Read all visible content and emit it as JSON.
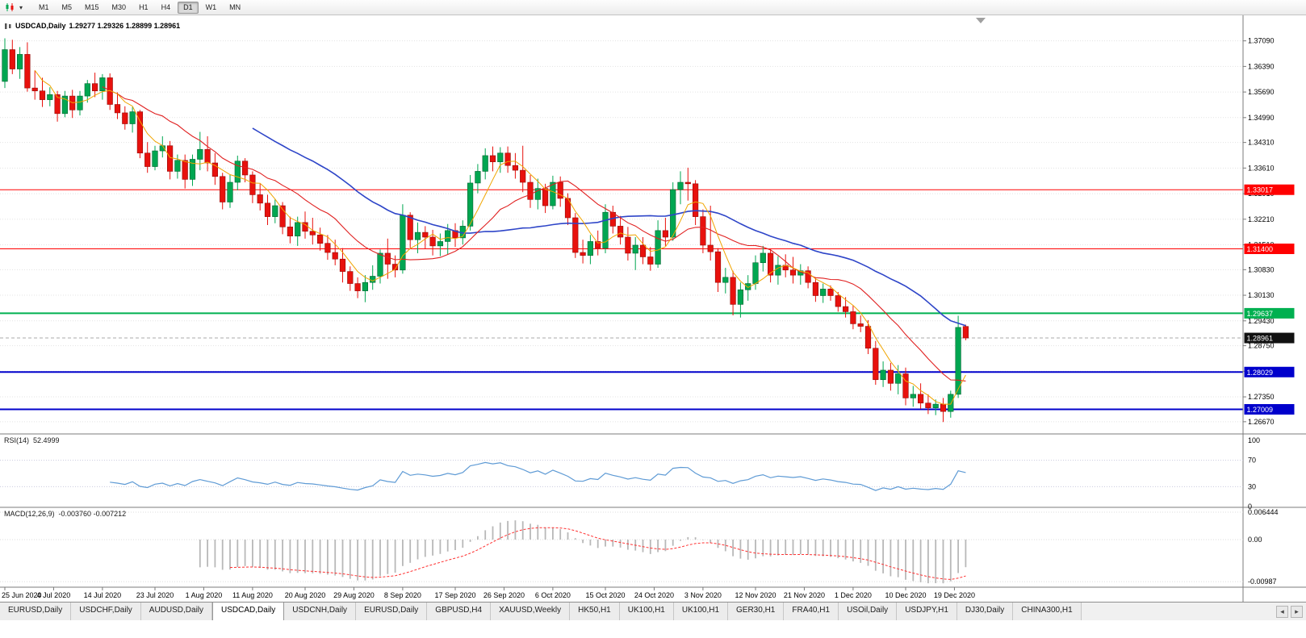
{
  "toolbar": {
    "timeframes": [
      "M1",
      "M5",
      "M15",
      "M30",
      "H1",
      "H4",
      "D1",
      "W1",
      "MN"
    ],
    "active_timeframe": "D1"
  },
  "icons": {
    "dropdown_caret": "▾",
    "tab_scroll_left": "◂",
    "tab_scroll_right": "▸"
  },
  "chart_header": {
    "symbol": "USDCAD,Daily",
    "ohlc": "1.29277 1.29326 1.28899 1.28961"
  },
  "indicators": {
    "rsi": {
      "name": "RSI(14)",
      "value": "52.4999",
      "period": 14,
      "line_color": "#5f9bd5",
      "levels": [
        {
          "label": "100",
          "value": 100
        },
        {
          "label": "70",
          "value": 70
        },
        {
          "label": "30",
          "value": 30
        },
        {
          "label": "0",
          "value": 0
        }
      ]
    },
    "macd": {
      "name": "MACD(12,26,9)",
      "values": "-0.003760 -0.007212",
      "fast": 12,
      "slow": 26,
      "signal": 9,
      "hist_color": "#b8b8b8",
      "signal_color": "#ff3030",
      "scale": [
        {
          "label": "0.006444",
          "value": 0.006444
        },
        {
          "label": "0.00",
          "value": 0
        },
        {
          "label": "-0.00987",
          "value": -0.00987
        }
      ]
    }
  },
  "price_scale": [
    {
      "label": "1.37090",
      "value": 1.3709
    },
    {
      "label": "1.36390",
      "value": 1.3639
    },
    {
      "label": "1.35690",
      "value": 1.3569
    },
    {
      "label": "1.34990",
      "value": 1.3499
    },
    {
      "label": "1.34310",
      "value": 1.3431
    },
    {
      "label": "1.33610",
      "value": 1.3361
    },
    {
      "label": "1.32910",
      "value": 1.3291
    },
    {
      "label": "1.32210",
      "value": 1.3221
    },
    {
      "label": "1.31510",
      "value": 1.3151
    },
    {
      "label": "1.30830",
      "value": 1.3083
    },
    {
      "label": "1.30130",
      "value": 1.3013
    },
    {
      "label": "1.29430",
      "value": 1.2943
    },
    {
      "label": "1.28750",
      "value": 1.2875
    },
    {
      "label": "1.28050",
      "value": 1.2805
    },
    {
      "label": "1.27350",
      "value": 1.2735
    },
    {
      "label": "1.26670",
      "value": 1.2667
    }
  ],
  "hlines": [
    {
      "label": "1.33017",
      "value": 1.33017,
      "color": "#ff0000",
      "width": 1
    },
    {
      "label": "1.31400",
      "value": 1.314,
      "color": "#ff0000",
      "width": 1
    },
    {
      "label": "1.29637",
      "value": 1.29637,
      "color": "#00b050",
      "width": 2
    },
    {
      "label": "1.28029",
      "value": 1.28029,
      "color": "#0000cc",
      "width": 2
    },
    {
      "label": "1.27009",
      "value": 1.27009,
      "color": "#0000cc",
      "width": 2
    }
  ],
  "current_price": {
    "label": "1.28961",
    "value": 1.28961,
    "line_color": "#a8a8a8",
    "tag_bg": "#111111"
  },
  "chart_data": {
    "type": "candlestick",
    "symbol": "USDCAD",
    "timeframe": "Daily",
    "ylim": [
      1.2638,
      1.377
    ],
    "bull_color": "#00a651",
    "bull_border": "#00642f",
    "bear_color": "#e8110d",
    "bear_border": "#940a07",
    "moving_averages": [
      {
        "period": 34,
        "color": "#2e45c8",
        "width": 1.6
      },
      {
        "period": 14,
        "color": "#e02020",
        "width": 1.1
      },
      {
        "period": 5,
        "color": "#f0a500",
        "width": 1.0
      }
    ],
    "x_labels": [
      {
        "text": "25 Jun 2020",
        "index": 0
      },
      {
        "text": "4 Jul 2020",
        "index": 6.5
      },
      {
        "text": "14 Jul 2020",
        "index": 13
      },
      {
        "text": "23 Jul 2020",
        "index": 20
      },
      {
        "text": "1 Aug 2020",
        "index": 26.5
      },
      {
        "text": "11 Aug 2020",
        "index": 33
      },
      {
        "text": "20 Aug 2020",
        "index": 40
      },
      {
        "text": "29 Aug 2020",
        "index": 46.5
      },
      {
        "text": "8 Sep 2020",
        "index": 53
      },
      {
        "text": "17 Sep 2020",
        "index": 60
      },
      {
        "text": "26 Sep 2020",
        "index": 66.5
      },
      {
        "text": "6 Oct 2020",
        "index": 73
      },
      {
        "text": "15 Oct 2020",
        "index": 80
      },
      {
        "text": "24 Oct 2020",
        "index": 86.5
      },
      {
        "text": "3 Nov 2020",
        "index": 93
      },
      {
        "text": "12 Nov 2020",
        "index": 100
      },
      {
        "text": "21 Nov 2020",
        "index": 106.5
      },
      {
        "text": "1 Dec 2020",
        "index": 113
      },
      {
        "text": "10 Dec 2020",
        "index": 120
      },
      {
        "text": "19 Dec 2020",
        "index": 126.5
      }
    ],
    "ohlc": [
      [
        1.3598,
        1.3716,
        1.358,
        1.3685
      ],
      [
        1.3685,
        1.3712,
        1.3618,
        1.3632
      ],
      [
        1.3632,
        1.3692,
        1.3605,
        1.3672
      ],
      [
        1.3672,
        1.3705,
        1.357,
        1.358
      ],
      [
        1.358,
        1.3628,
        1.3548,
        1.3572
      ],
      [
        1.3572,
        1.3608,
        1.3528,
        1.3548
      ],
      [
        1.3548,
        1.3582,
        1.353,
        1.3562
      ],
      [
        1.3562,
        1.3572,
        1.3488,
        1.351
      ],
      [
        1.351,
        1.3572,
        1.35,
        1.3558
      ],
      [
        1.3558,
        1.3575,
        1.3498,
        1.352
      ],
      [
        1.352,
        1.3572,
        1.3505,
        1.3558
      ],
      [
        1.3558,
        1.3602,
        1.354,
        1.3592
      ],
      [
        1.3592,
        1.3622,
        1.3555,
        1.3572
      ],
      [
        1.3572,
        1.3618,
        1.3548,
        1.3608
      ],
      [
        1.3608,
        1.362,
        1.352,
        1.3535
      ],
      [
        1.3535,
        1.3568,
        1.3495,
        1.3512
      ],
      [
        1.3512,
        1.353,
        1.3466,
        1.3482
      ],
      [
        1.3482,
        1.3528,
        1.3458,
        1.3515
      ],
      [
        1.3515,
        1.352,
        1.3388,
        1.3402
      ],
      [
        1.3402,
        1.3432,
        1.3348,
        1.3365
      ],
      [
        1.3365,
        1.3422,
        1.3355,
        1.3408
      ],
      [
        1.3408,
        1.3448,
        1.339,
        1.3422
      ],
      [
        1.3422,
        1.3435,
        1.333,
        1.3352
      ],
      [
        1.3352,
        1.3398,
        1.3332,
        1.3382
      ],
      [
        1.3382,
        1.3398,
        1.3305,
        1.333
      ],
      [
        1.333,
        1.3398,
        1.3312,
        1.3385
      ],
      [
        1.3385,
        1.346,
        1.3355,
        1.3412
      ],
      [
        1.3412,
        1.3448,
        1.3352,
        1.3375
      ],
      [
        1.3375,
        1.3402,
        1.3315,
        1.3338
      ],
      [
        1.3338,
        1.3348,
        1.3248,
        1.3268
      ],
      [
        1.3268,
        1.3342,
        1.3252,
        1.3322
      ],
      [
        1.3322,
        1.3395,
        1.33,
        1.338
      ],
      [
        1.338,
        1.3388,
        1.3322,
        1.3342
      ],
      [
        1.3342,
        1.3352,
        1.3265,
        1.3288
      ],
      [
        1.3288,
        1.3318,
        1.3245,
        1.3265
      ],
      [
        1.3265,
        1.3288,
        1.3205,
        1.3228
      ],
      [
        1.3228,
        1.3275,
        1.321,
        1.3258
      ],
      [
        1.3258,
        1.3268,
        1.318,
        1.32
      ],
      [
        1.32,
        1.3228,
        1.3155,
        1.3175
      ],
      [
        1.3175,
        1.3228,
        1.3148,
        1.3212
      ],
      [
        1.3212,
        1.3242,
        1.3168,
        1.3188
      ],
      [
        1.3188,
        1.3225,
        1.3152,
        1.3178
      ],
      [
        1.3178,
        1.3198,
        1.3135,
        1.3155
      ],
      [
        1.3155,
        1.3178,
        1.311,
        1.313
      ],
      [
        1.313,
        1.3165,
        1.3095,
        1.3112
      ],
      [
        1.3112,
        1.3142,
        1.3048,
        1.3078
      ],
      [
        1.3078,
        1.3092,
        1.3025,
        1.3045
      ],
      [
        1.3045,
        1.3062,
        1.3005,
        1.3025
      ],
      [
        1.3025,
        1.3068,
        1.2994,
        1.3048
      ],
      [
        1.3048,
        1.3095,
        1.3028,
        1.3065
      ],
      [
        1.3065,
        1.3138,
        1.3045,
        1.3128
      ],
      [
        1.3128,
        1.3168,
        1.3058,
        1.3098
      ],
      [
        1.3098,
        1.3122,
        1.3062,
        1.3082
      ],
      [
        1.3082,
        1.3262,
        1.3072,
        1.3232
      ],
      [
        1.3232,
        1.324,
        1.3142,
        1.3165
      ],
      [
        1.3165,
        1.3212,
        1.3128,
        1.3185
      ],
      [
        1.3185,
        1.3202,
        1.314,
        1.3172
      ],
      [
        1.3172,
        1.3192,
        1.3122,
        1.3148
      ],
      [
        1.3148,
        1.3182,
        1.312,
        1.316
      ],
      [
        1.316,
        1.3208,
        1.3125,
        1.319
      ],
      [
        1.319,
        1.321,
        1.3145,
        1.317
      ],
      [
        1.317,
        1.3218,
        1.3152,
        1.3202
      ],
      [
        1.3202,
        1.3342,
        1.319,
        1.332
      ],
      [
        1.332,
        1.3372,
        1.3292,
        1.3352
      ],
      [
        1.3352,
        1.3415,
        1.333,
        1.3395
      ],
      [
        1.3395,
        1.342,
        1.3352,
        1.3378
      ],
      [
        1.3378,
        1.3418,
        1.3348,
        1.3402
      ],
      [
        1.3402,
        1.342,
        1.3348,
        1.3368
      ],
      [
        1.3368,
        1.3402,
        1.3332,
        1.3355
      ],
      [
        1.3355,
        1.3422,
        1.3295,
        1.3322
      ],
      [
        1.3322,
        1.3342,
        1.3252,
        1.3275
      ],
      [
        1.3275,
        1.3332,
        1.3248,
        1.3305
      ],
      [
        1.3305,
        1.3318,
        1.3238,
        1.3258
      ],
      [
        1.3258,
        1.334,
        1.3248,
        1.3322
      ],
      [
        1.3322,
        1.3338,
        1.3255,
        1.3278
      ],
      [
        1.3278,
        1.3292,
        1.3205,
        1.3225
      ],
      [
        1.3225,
        1.3238,
        1.3115,
        1.313
      ],
      [
        1.313,
        1.3165,
        1.31,
        1.3122
      ],
      [
        1.3122,
        1.3178,
        1.3098,
        1.316
      ],
      [
        1.316,
        1.319,
        1.3122,
        1.3142
      ],
      [
        1.3142,
        1.3262,
        1.3128,
        1.324
      ],
      [
        1.324,
        1.3258,
        1.3182,
        1.3202
      ],
      [
        1.3202,
        1.323,
        1.3152,
        1.3172
      ],
      [
        1.3172,
        1.32,
        1.3108,
        1.3128
      ],
      [
        1.3128,
        1.3172,
        1.3082,
        1.315
      ],
      [
        1.315,
        1.3172,
        1.3098,
        1.3118
      ],
      [
        1.3118,
        1.3145,
        1.308,
        1.3098
      ],
      [
        1.3098,
        1.3218,
        1.3088,
        1.319
      ],
      [
        1.319,
        1.3225,
        1.3148,
        1.3172
      ],
      [
        1.3172,
        1.3322,
        1.3162,
        1.3302
      ],
      [
        1.3302,
        1.3352,
        1.3262,
        1.3322
      ],
      [
        1.3322,
        1.3362,
        1.3272,
        1.3318
      ],
      [
        1.3318,
        1.3328,
        1.3205,
        1.3228
      ],
      [
        1.3228,
        1.3248,
        1.3128,
        1.315
      ],
      [
        1.315,
        1.3258,
        1.3108,
        1.3132
      ],
      [
        1.3132,
        1.3142,
        1.3022,
        1.3048
      ],
      [
        1.3048,
        1.3088,
        1.3018,
        1.3062
      ],
      [
        1.3062,
        1.308,
        1.2958,
        1.2988
      ],
      [
        1.2988,
        1.3048,
        1.2952,
        1.3028
      ],
      [
        1.3028,
        1.3068,
        1.2998,
        1.3045
      ],
      [
        1.3045,
        1.3122,
        1.3028,
        1.3102
      ],
      [
        1.3102,
        1.3148,
        1.3078,
        1.3128
      ],
      [
        1.3128,
        1.314,
        1.3048,
        1.3068
      ],
      [
        1.3068,
        1.312,
        1.3042,
        1.3095
      ],
      [
        1.3095,
        1.3125,
        1.3062,
        1.3082
      ],
      [
        1.3082,
        1.3118,
        1.3045,
        1.3068
      ],
      [
        1.3068,
        1.3098,
        1.3042,
        1.308
      ],
      [
        1.308,
        1.3092,
        1.3032,
        1.3048
      ],
      [
        1.3048,
        1.3062,
        1.2995,
        1.3012
      ],
      [
        1.3012,
        1.3045,
        1.2992,
        1.303
      ],
      [
        1.303,
        1.304,
        1.2998,
        1.3012
      ],
      [
        1.3012,
        1.3022,
        1.2968,
        1.2982
      ],
      [
        1.2982,
        1.3008,
        1.2952,
        1.2968
      ],
      [
        1.2968,
        1.2985,
        1.292,
        1.2935
      ],
      [
        1.2935,
        1.2958,
        1.2912,
        1.2928
      ],
      [
        1.2928,
        1.2945,
        1.2852,
        1.2868
      ],
      [
        1.2868,
        1.2888,
        1.2768,
        1.2782
      ],
      [
        1.2782,
        1.2832,
        1.2762,
        1.2808
      ],
      [
        1.2808,
        1.2828,
        1.2752,
        1.2772
      ],
      [
        1.2772,
        1.2822,
        1.2742,
        1.2798
      ],
      [
        1.2798,
        1.2815,
        1.2712,
        1.2732
      ],
      [
        1.2732,
        1.2765,
        1.2708,
        1.2742
      ],
      [
        1.2742,
        1.2772,
        1.2702,
        1.2718
      ],
      [
        1.2718,
        1.2742,
        1.2688,
        1.2705
      ],
      [
        1.2705,
        1.2728,
        1.2685,
        1.2715
      ],
      [
        1.2715,
        1.2732,
        1.2666,
        1.2695
      ],
      [
        1.2695,
        1.2752,
        1.2678,
        1.2742
      ],
      [
        1.2742,
        1.2957,
        1.2732,
        1.2925
      ],
      [
        1.29277,
        1.29326,
        1.28899,
        1.28961
      ]
    ]
  },
  "tabs": {
    "active_index": 3,
    "items": [
      "EURUSD,Daily",
      "USDCHF,Daily",
      "AUDUSD,Daily",
      "USDCAD,Daily",
      "USDCNH,Daily",
      "EURUSD,Daily",
      "GBPUSD,H4",
      "XAUUSD,Weekly",
      "HK50,H1",
      "UK100,H1",
      "UK100,H1",
      "GER30,H1",
      "FRA40,H1",
      "USOil,Daily",
      "USDJPY,H1",
      "DJ30,Daily",
      "CHINA300,H1"
    ]
  }
}
